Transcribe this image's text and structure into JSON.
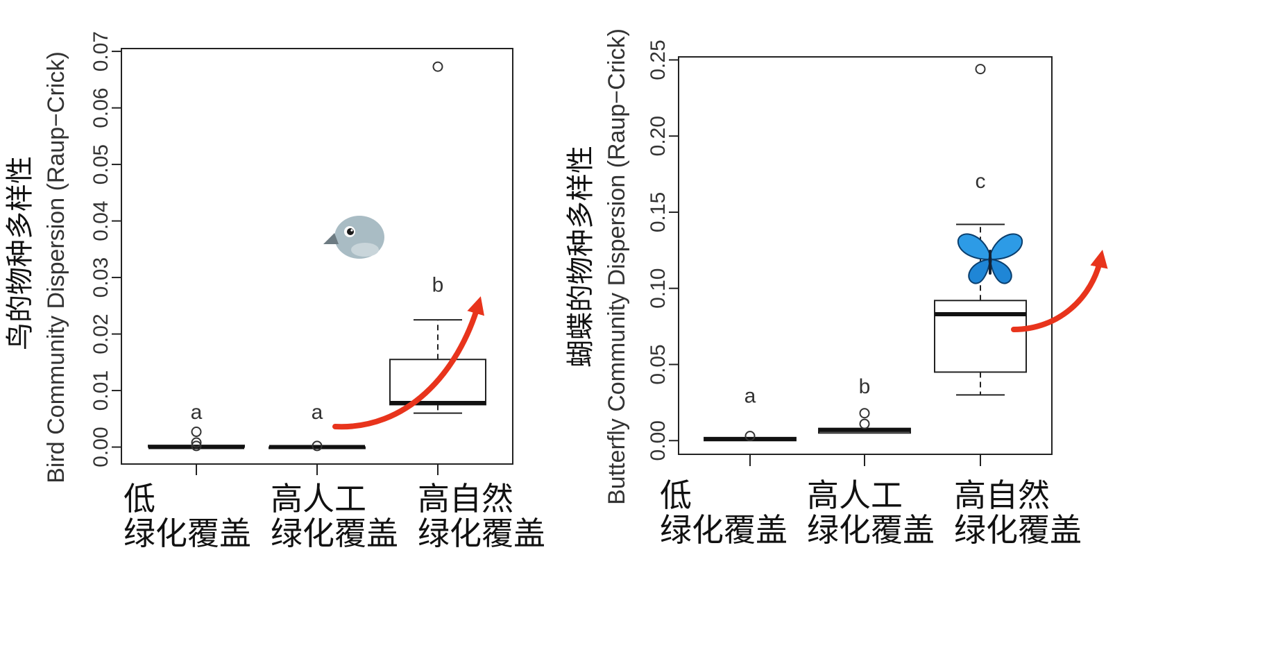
{
  "colors": {
    "arrow": "#e8341c",
    "frame": "#222222",
    "median": "#111111",
    "bird_body": "#a9bcc4",
    "butterfly_wing": "#2d9be6"
  },
  "chart_data": [
    {
      "type": "box",
      "ylabel": "Bird Community Dispersion (Raup−Crick)",
      "ylabel_zh": "鸟的物种多样性",
      "ylim": [
        -0.003,
        0.0705
      ],
      "yticks": [
        "0.00",
        "0.01",
        "0.02",
        "0.03",
        "0.04",
        "0.05",
        "0.06",
        "0.07"
      ],
      "ytick_values": [
        0,
        0.01,
        0.02,
        0.03,
        0.04,
        0.05,
        0.06,
        0.07
      ],
      "icon": "bird-icon",
      "categories": [
        {
          "line1": "低",
          "line2": "绿化覆盖",
          "letter": "a",
          "whisker_low": 0.0,
          "q1": 0.0,
          "median": 0.0,
          "q3": 0.0003,
          "whisker_high": 0.0003,
          "outliers": [
            0.0027,
            0.0008,
            0.0002
          ],
          "letter_y": 0.005
        },
        {
          "line1": "高人工",
          "line2": "绿化覆盖",
          "letter": "a",
          "whisker_low": 0.0,
          "q1": 0.0,
          "median": 0.0,
          "q3": 0.0,
          "whisker_high": 0.0,
          "outliers": [
            0.0002
          ],
          "letter_y": 0.005
        },
        {
          "line1": "高自然",
          "line2": "绿化覆盖",
          "letter": "b",
          "whisker_low": 0.006,
          "q1": 0.0075,
          "median": 0.0078,
          "q3": 0.0155,
          "whisker_high": 0.0225,
          "outliers": [
            0.0673
          ],
          "letter_y": 0.0275
        }
      ]
    },
    {
      "type": "box",
      "ylabel": "Butterfly Community Dispersion (Raup−Crick)",
      "ylabel_zh": "蝴蝶的物种多样性",
      "ylim": [
        -0.009,
        0.252
      ],
      "yticks": [
        "0.00",
        "0.05",
        "0.10",
        "0.15",
        "0.20",
        "0.25"
      ],
      "ytick_values": [
        0,
        0.05,
        0.1,
        0.15,
        0.2,
        0.25
      ],
      "icon": "butterfly-icon",
      "categories": [
        {
          "line1": "低",
          "line2": "绿化覆盖",
          "letter": "a",
          "whisker_low": 0.0,
          "q1": 0.0,
          "median": 0.001,
          "q3": 0.002,
          "whisker_high": 0.002,
          "outliers": [
            0.003
          ],
          "letter_y": 0.025
        },
        {
          "line1": "高人工",
          "line2": "绿化覆盖",
          "letter": "b",
          "whisker_low": 0.005,
          "q1": 0.005,
          "median": 0.007,
          "q3": 0.008,
          "whisker_high": 0.008,
          "outliers": [
            0.018,
            0.011
          ],
          "letter_y": 0.031
        },
        {
          "line1": "高自然",
          "line2": "绿化覆盖",
          "letter": "c",
          "whisker_low": 0.03,
          "q1": 0.045,
          "median": 0.083,
          "q3": 0.092,
          "whisker_high": 0.142,
          "outliers": [
            0.244
          ],
          "letter_y": 0.166
        }
      ]
    }
  ]
}
